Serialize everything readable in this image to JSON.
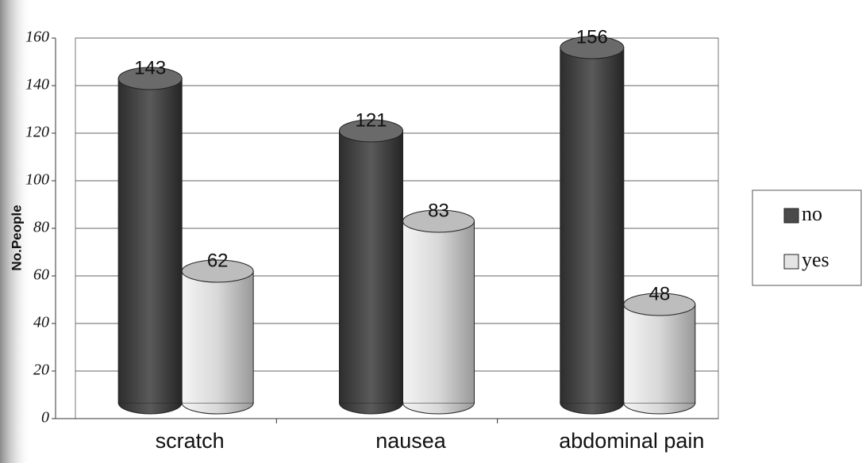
{
  "chart_data": {
    "type": "bar",
    "categories": [
      "scratch",
      "nausea",
      "abdominal pain"
    ],
    "series": [
      {
        "name": "no",
        "color": "#4a4a4a",
        "values": [
          143,
          121,
          156
        ]
      },
      {
        "name": "yes",
        "color": "#e4e4e4",
        "values": [
          62,
          83,
          48
        ]
      }
    ],
    "y_label": "No.People",
    "ylim": [
      0,
      160
    ],
    "yticks": [
      0,
      20,
      40,
      60,
      80,
      100,
      120,
      140,
      160
    ],
    "grid": true,
    "legend": "right"
  }
}
